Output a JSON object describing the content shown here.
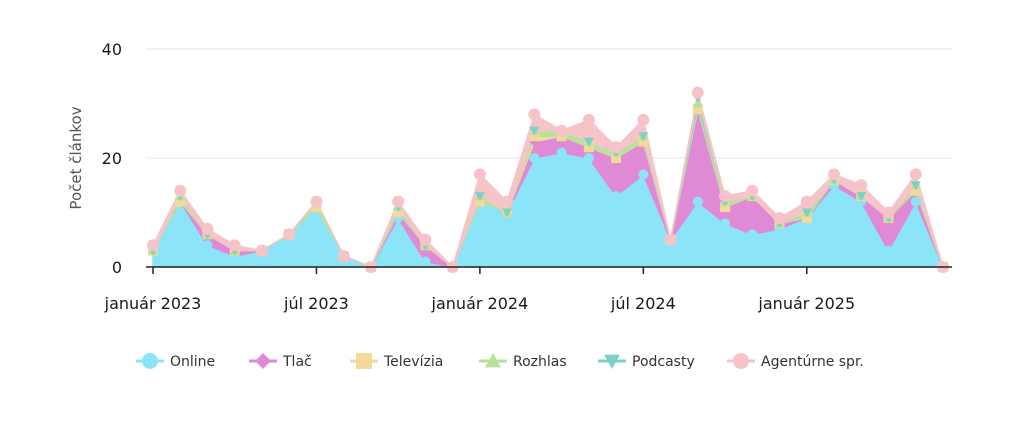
{
  "chart_data": {
    "type": "area",
    "stacked": true,
    "ylabel": "Počet článkov",
    "ylim": [
      0,
      40
    ],
    "yticks": [
      0,
      20,
      40
    ],
    "grid": "horizontal",
    "legend_position": "bottom",
    "x_tick_labels": [
      "január 2023",
      "júl 2023",
      "január 2024",
      "júl 2024",
      "január 2025"
    ],
    "x_tick_index": [
      0,
      6,
      12,
      18,
      24
    ],
    "months": 30,
    "series": [
      {
        "name": "Online",
        "color": "#8be4f7",
        "marker": "circle",
        "values": [
          3,
          12,
          4,
          2,
          3,
          6,
          11,
          2,
          0,
          9,
          1,
          0,
          12,
          10,
          20,
          21,
          20,
          13,
          17,
          5,
          12,
          8,
          6,
          7,
          9,
          15,
          12,
          3,
          12,
          0
        ]
      },
      {
        "name": "Tlač",
        "color": "#e08ad6",
        "marker": "diamond",
        "values": [
          0,
          0,
          2,
          1,
          0,
          0,
          0,
          0,
          0,
          1,
          3,
          0,
          0,
          0,
          3,
          3,
          2,
          7,
          6,
          0,
          17,
          3,
          7,
          1,
          0,
          1,
          1,
          6,
          2,
          0
        ]
      },
      {
        "name": "Televízia",
        "color": "#f3d99a",
        "marker": "square",
        "values": [
          0,
          0,
          0,
          0,
          0,
          0,
          0,
          0,
          0,
          0,
          0,
          0,
          0,
          0,
          1,
          0,
          0,
          0,
          0,
          0,
          0,
          0,
          0,
          0,
          0,
          0,
          0,
          0,
          0,
          0
        ]
      },
      {
        "name": "Rozhlas",
        "color": "#b7e29c",
        "marker": "triangle",
        "values": [
          0,
          1,
          0,
          0,
          0,
          0,
          1,
          0,
          0,
          1,
          0,
          0,
          1,
          0,
          1,
          1,
          1,
          1,
          1,
          0,
          1,
          1,
          0,
          0,
          1,
          0,
          0,
          0,
          1,
          0
        ]
      },
      {
        "name": "Podcasty",
        "color": "#7fd1c6",
        "marker": "triangle-down",
        "values": [
          0,
          0,
          0,
          0,
          0,
          0,
          0,
          0,
          0,
          0,
          0,
          0,
          0,
          0,
          0,
          0,
          0,
          0,
          0,
          0,
          1,
          0,
          0,
          0,
          0,
          0,
          0,
          0,
          0,
          0
        ]
      },
      {
        "name": "Agentúrne spr.",
        "color": "#f6c4c8",
        "marker": "circle",
        "values": [
          1,
          1,
          1,
          1,
          0,
          0,
          0,
          0,
          0,
          1,
          1,
          0,
          4,
          2,
          3,
          0,
          4,
          1,
          3,
          0,
          1,
          1,
          1,
          1,
          2,
          1,
          2,
          1,
          2,
          0
        ]
      }
    ]
  }
}
